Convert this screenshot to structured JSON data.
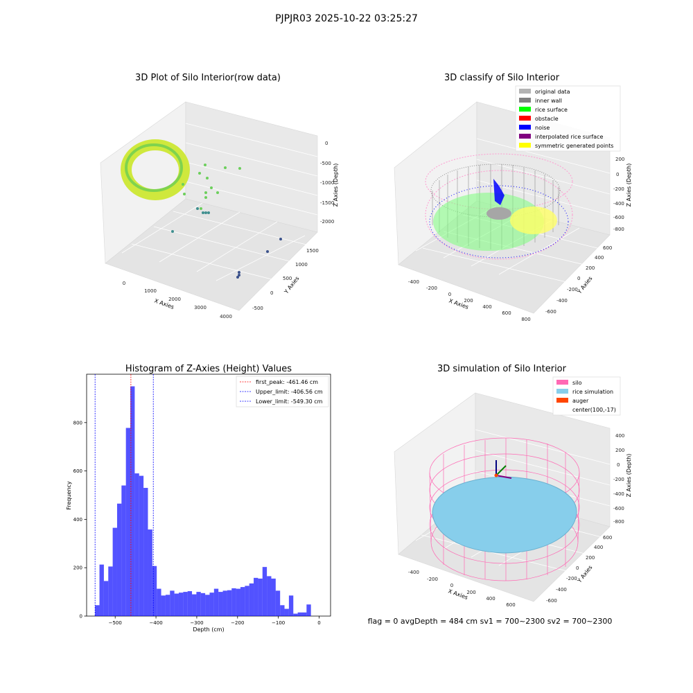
{
  "suptitle": "PJPJR03 2025-10-22 03:25:27",
  "footer": "flag = 0     avgDepth = 484 cm  sv1 = 700~2300  sv2 = 700~2300",
  "chart_data": [
    {
      "type": "scatter",
      "subtype": "3d",
      "title": "3D Plot of Silo Interior(row data)",
      "xlabel": "X Axies",
      "ylabel": "Y Axies",
      "zlabel": "Z Axies (Depth)",
      "x_ticks": [
        "0",
        "1000",
        "2000",
        "3000",
        "4000"
      ],
      "y_ticks": [
        "-500",
        "0",
        "500",
        "1000",
        "1500"
      ],
      "z_ticks": [
        "0",
        "-500",
        "-1000",
        "-1500",
        "-2000"
      ],
      "colors": {
        "low": "#fde725",
        "mid": "#5ec962",
        "high": "#3b528b"
      }
    },
    {
      "type": "scatter",
      "subtype": "3d",
      "title": "3D classify of Silo Interior",
      "xlabel": "X Axies",
      "ylabel": "Y Axies",
      "zlabel": "Z Axies (Depth)",
      "x_ticks": [
        "-400",
        "-200",
        "0",
        "200",
        "400",
        "600",
        "800"
      ],
      "y_ticks": [
        "-600",
        "-400",
        "-200",
        "0",
        "200",
        "400",
        "600"
      ],
      "z_ticks": [
        "200",
        "0",
        "-200",
        "-400",
        "-600",
        "-800"
      ],
      "legend_position": "top-right",
      "legend": [
        {
          "label": "original data",
          "color": "#b3b3b3"
        },
        {
          "label": "inner wall",
          "color": "#808080"
        },
        {
          "label": "rice surface",
          "color": "#00ff00"
        },
        {
          "label": "obstacle",
          "color": "#ff0000"
        },
        {
          "label": "noise",
          "color": "#0000ff"
        },
        {
          "label": "interpolated rice surface",
          "color": "#800080"
        },
        {
          "label": "symmetric generated points",
          "color": "#ffff00"
        }
      ]
    },
    {
      "type": "bar",
      "subtype": "histogram",
      "title": "Histogram of Z-Axies (Height) Values",
      "xlabel": "Depth (cm)",
      "ylabel": "Frequency",
      "xlim": [
        -570,
        28
      ],
      "ylim": [
        0,
        1000
      ],
      "x_ticks": [
        -500,
        -400,
        -300,
        -200,
        -100,
        0
      ],
      "y_ticks": [
        0,
        200,
        400,
        600,
        800
      ],
      "bar_color": "#0000ff",
      "bin_width": 10.8,
      "bin_start": -549.3,
      "values": [
        45,
        213,
        145,
        205,
        365,
        465,
        540,
        778,
        950,
        590,
        580,
        530,
        358,
        207,
        113,
        85,
        88,
        105,
        93,
        97,
        100,
        103,
        90,
        100,
        95,
        88,
        97,
        113,
        100,
        105,
        107,
        115,
        113,
        120,
        125,
        135,
        158,
        155,
        203,
        165,
        155,
        105,
        45,
        30,
        85,
        10,
        15,
        15,
        48
      ],
      "lines": [
        {
          "label": "first_peak: -461.46 cm",
          "x": -461.46,
          "color": "#ff0000"
        },
        {
          "label": "Upper_limit: -406.56 cm",
          "x": -406.56,
          "color": "#0000ff"
        },
        {
          "label": "Lower_limit: -549.30 cm",
          "x": -549.3,
          "color": "#0000ff"
        }
      ],
      "legend_position": "top-right"
    },
    {
      "type": "scatter",
      "subtype": "3d-surface",
      "title": "3D simulation of Silo Interior",
      "xlabel": "X Axies",
      "ylabel": "Y Axies",
      "zlabel": "Z Axies (Depth)",
      "x_ticks": [
        "-400",
        "-200",
        "0",
        "200",
        "400",
        "600"
      ],
      "y_ticks": [
        "-600",
        "-400",
        "-200",
        "0",
        "200",
        "400",
        "600"
      ],
      "z_ticks": [
        "400",
        "200",
        "0",
        "-200",
        "-400",
        "-600",
        "-800"
      ],
      "legend_position": "top-right",
      "legend": [
        {
          "label": "silo",
          "color": "#ff69b4"
        },
        {
          "label": "rice simulation",
          "color": "#87ceeb"
        },
        {
          "label": "auger",
          "color": "#ff4500"
        },
        {
          "label": "center(100,-17)",
          "color": ""
        }
      ]
    }
  ]
}
